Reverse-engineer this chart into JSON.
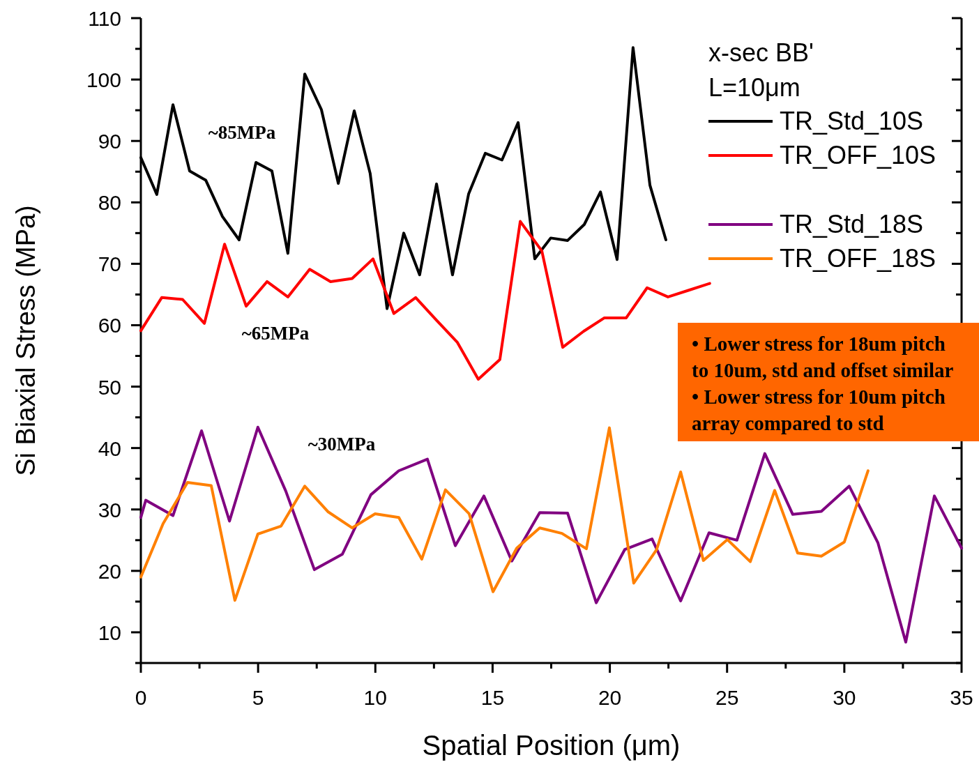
{
  "chart_data": {
    "type": "line",
    "xlabel": "Spatial Position (μm)",
    "ylabel": "Si Biaxial Stress (MPa)",
    "legend_title": "x-sec BB'\nL=10μm",
    "legend": "top right",
    "grid": false,
    "line_style": "solid",
    "marker": "none",
    "xlim": [
      0,
      35
    ],
    "ylim": [
      5,
      110
    ],
    "xticks": [
      0,
      {
        "value": 2.5,
        "label": null
      },
      5,
      {
        "value": 7.5,
        "label": null
      },
      10,
      {
        "value": 12.5,
        "label": null
      },
      15,
      {
        "value": 17.5,
        "label": null
      },
      20,
      {
        "value": 22.5,
        "label": null
      },
      25,
      {
        "value": 27.5,
        "label": null
      },
      30,
      {
        "value": 32.5,
        "label": null
      },
      35
    ],
    "yticks": [
      {
        "value": 5,
        "label": null
      },
      10,
      {
        "value": 15,
        "label": null
      },
      20,
      {
        "value": 25,
        "label": null
      },
      30,
      {
        "value": 35,
        "label": null
      },
      40,
      {
        "value": 45,
        "label": null
      },
      50,
      {
        "value": 55,
        "label": null
      },
      60,
      {
        "value": 65,
        "label": null
      },
      70,
      {
        "value": 75,
        "label": null
      },
      80,
      {
        "value": 85,
        "label": null
      },
      90,
      {
        "value": 95,
        "label": null
      },
      100,
      {
        "value": 105,
        "label": null
      },
      110
    ],
    "series": [
      {
        "name": "TR_Std_10S",
        "color": "#000000",
        "x": [
          0,
          0.68,
          1.37,
          2.08,
          2.77,
          3.48,
          4.19,
          4.91,
          5.59,
          6.27,
          6.99,
          7.7,
          8.42,
          9.1,
          9.78,
          10.5,
          11.21,
          11.89,
          12.61,
          13.29,
          13.98,
          14.69,
          15.4,
          16.09,
          16.8,
          17.48,
          18.2,
          18.91,
          19.6,
          20.31,
          20.99,
          21.71,
          22.39
        ],
        "values": [
          87.3,
          81.3,
          95.9,
          85.1,
          83.6,
          77.7,
          73.9,
          86.5,
          85.1,
          71.7,
          100.9,
          95.1,
          83.1,
          94.9,
          84.7,
          62.7,
          75.0,
          68.2,
          83.0,
          68.2,
          81.4,
          88.0,
          86.9,
          93.0,
          70.8,
          74.2,
          73.8,
          76.4,
          81.7,
          70.7,
          105.2,
          82.8,
          73.9
        ]
      },
      {
        "name": "TR_OFF_10S",
        "color": "#ff0000",
        "x": [
          0,
          0.89,
          1.78,
          2.71,
          3.57,
          4.49,
          5.38,
          6.27,
          7.2,
          8.09,
          9.01,
          9.9,
          10.79,
          11.72,
          12.61,
          13.5,
          14.39,
          15.31,
          16.18,
          17.1,
          17.99,
          18.88,
          19.77,
          20.7,
          21.59,
          22.48,
          23.37,
          24.26
        ],
        "values": [
          59.1,
          64.5,
          64.2,
          60.3,
          73.2,
          63.1,
          67.1,
          64.6,
          69.1,
          67.1,
          67.6,
          70.8,
          61.9,
          64.5,
          60.8,
          57.2,
          51.2,
          54.4,
          76.9,
          72.1,
          56.4,
          59.0,
          61.2,
          61.2,
          66.1,
          64.6,
          65.7,
          66.8
        ]
      },
      {
        "name": "TR_Std_18S",
        "color": "#800080",
        "x": [
          0,
          0.21,
          1.37,
          2.59,
          3.78,
          4.99,
          6.18,
          7.4,
          8.59,
          9.81,
          11.0,
          12.22,
          13.41,
          14.63,
          15.82,
          17.01,
          18.2,
          19.42,
          20.64,
          21.8,
          23.02,
          24.23,
          25.42,
          26.61,
          27.8,
          29.02,
          30.21,
          31.43,
          32.62,
          33.84,
          35.0
        ],
        "values": [
          28.7,
          31.5,
          29.0,
          42.8,
          28.1,
          43.4,
          33.0,
          20.2,
          22.7,
          32.4,
          36.3,
          38.2,
          24.1,
          32.2,
          21.6,
          29.5,
          29.4,
          14.8,
          23.5,
          25.2,
          15.1,
          26.2,
          25.0,
          39.1,
          29.2,
          29.7,
          33.8,
          24.6,
          8.4,
          32.2,
          23.7
        ]
      },
      {
        "name": "TR_OFF_18S",
        "color": "#ff8000",
        "x": [
          0,
          0.95,
          1.99,
          3.0,
          4.01,
          4.99,
          5.98,
          6.99,
          7.99,
          9.01,
          9.99,
          11.0,
          11.98,
          12.99,
          14.0,
          15.02,
          16.03,
          17.01,
          17.96,
          19.0,
          19.98,
          21.02,
          22.0,
          23.02,
          23.99,
          25.01,
          25.99,
          27.03,
          28.01,
          29.02,
          30.0,
          31.01
        ],
        "values": [
          19.0,
          27.7,
          34.4,
          33.9,
          15.2,
          26.0,
          27.3,
          33.8,
          29.6,
          27.0,
          29.3,
          28.7,
          21.9,
          33.2,
          29.3,
          16.6,
          23.7,
          27.0,
          26.1,
          23.6,
          43.3,
          18.0,
          23.5,
          36.1,
          21.7,
          25.1,
          21.5,
          33.1,
          22.9,
          22.4,
          24.7,
          36.3
        ]
      }
    ],
    "annotations": [
      "~85MPa",
      "~65MPa",
      "~30MPa",
      "• Lower stress for 18um pitch to 10um, std and offset similar\n• Lower stress for 10um pitch array compared to std"
    ]
  }
}
